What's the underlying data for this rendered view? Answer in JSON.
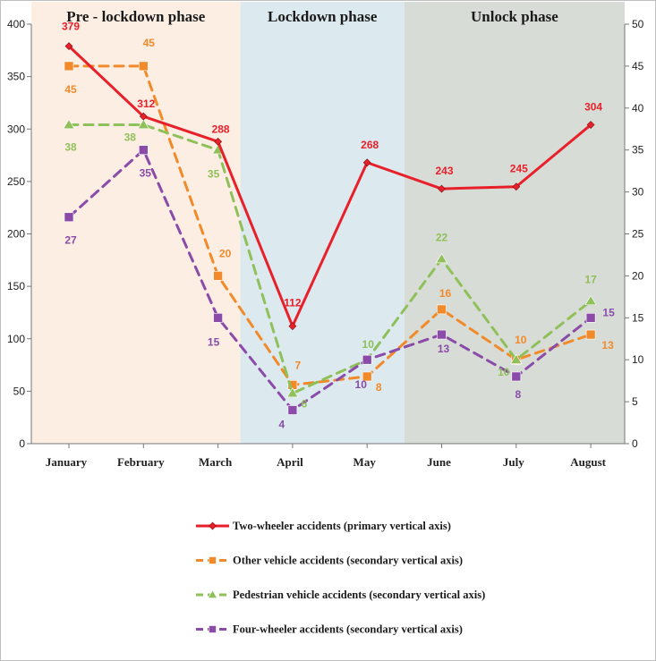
{
  "chart_data": {
    "type": "line",
    "categories": [
      "January",
      "February",
      "March",
      "April",
      "May",
      "June",
      "July",
      "August"
    ],
    "phases": [
      {
        "label": "Pre - lockdown phase",
        "from": 0,
        "to": 2.3,
        "color": "#fdeee4"
      },
      {
        "label": "Lockdown phase",
        "from": 2.3,
        "to": 4.5,
        "color": "#dce9ef"
      },
      {
        "label": "Unlock phase",
        "from": 4.5,
        "to": 7.5,
        "color": "#d8dcd6"
      }
    ],
    "primary_axis": {
      "min": 0,
      "max": 400,
      "step": 50,
      "ticks": [
        "0",
        "50",
        "100",
        "150",
        "200",
        "250",
        "300",
        "350",
        "400"
      ]
    },
    "secondary_axis": {
      "min": 0,
      "max": 50,
      "step": 5,
      "ticks": [
        "0",
        "5",
        "10",
        "15",
        "20",
        "25",
        "30",
        "35",
        "40",
        "45",
        "50"
      ]
    },
    "series": [
      {
        "key": "two",
        "name": "Two-wheeler accidents (primary vertical axis)",
        "axis": "primary",
        "color": "#e8202a",
        "marker": "diamond",
        "dashed": false,
        "values": [
          379,
          312,
          288,
          112,
          268,
          243,
          245,
          304
        ],
        "labels": [
          "379",
          "312",
          "288",
          "112",
          "268",
          "243",
          "245",
          "304"
        ]
      },
      {
        "key": "other",
        "name": "Other vehicle accidents (secondary vertical axis)",
        "axis": "secondary",
        "color": "#f08a2a",
        "marker": "square",
        "dashed": true,
        "values": [
          45,
          45,
          20,
          7,
          8,
          16,
          10,
          13
        ],
        "labels": [
          "45",
          "45",
          "20",
          "7",
          "8",
          "16",
          "10",
          "13"
        ]
      },
      {
        "key": "ped",
        "name": "Pedestrian vehicle accidents (secondary vertical axis)",
        "axis": "secondary",
        "color": "#8fc05a",
        "marker": "triangle",
        "dashed": true,
        "values": [
          38,
          38,
          35,
          6,
          10,
          22,
          10,
          17
        ],
        "labels": [
          "38",
          "38",
          "35",
          "6",
          "10",
          "22",
          "10",
          "17"
        ]
      },
      {
        "key": "four",
        "name": "Four-wheeler accidents (secondary vertical axis)",
        "axis": "secondary",
        "color": "#8a4ca8",
        "marker": "square",
        "dashed": true,
        "values": [
          27,
          35,
          15,
          4,
          10,
          13,
          8,
          15
        ],
        "labels": [
          "27",
          "35",
          "15",
          "4",
          "10",
          "13",
          "8",
          "15"
        ]
      }
    ]
  }
}
